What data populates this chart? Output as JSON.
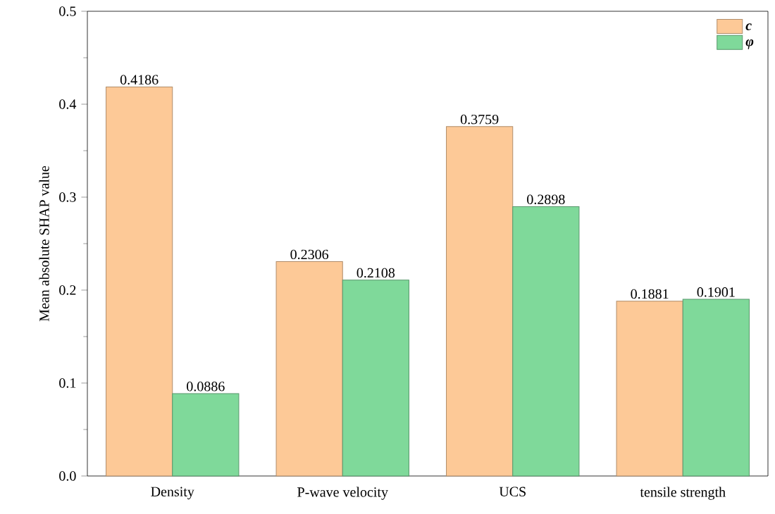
{
  "chart_data": {
    "type": "bar",
    "ylabel": "Mean absolute SHAP value",
    "categories": [
      "Density",
      "P-wave velocity",
      "UCS",
      "tensile strength"
    ],
    "series": [
      {
        "name": "c",
        "color": "#fdc997",
        "values": [
          0.4186,
          0.2306,
          0.3759,
          0.1881
        ]
      },
      {
        "name": "φ",
        "color": "#7fd99a",
        "values": [
          0.0886,
          0.2108,
          0.2898,
          0.1901
        ]
      }
    ],
    "ylim": [
      0,
      0.5
    ],
    "yticks": [
      {
        "value": 0,
        "label": "0.0"
      },
      {
        "value": 0.1,
        "label": "0.1"
      },
      {
        "value": 0.2,
        "label": "0.2"
      },
      {
        "value": 0.3,
        "label": "0.3"
      },
      {
        "value": 0.4,
        "label": "0.4"
      },
      {
        "value": 0.5,
        "label": "0.5"
      }
    ],
    "data_labels": true,
    "legend": "top right",
    "grid": false
  }
}
